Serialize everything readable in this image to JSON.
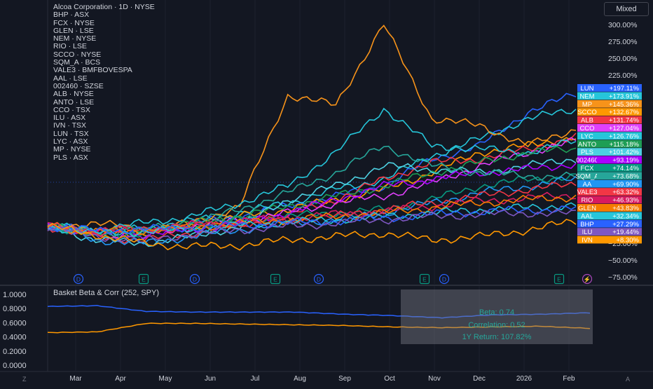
{
  "header": {
    "title": "Alcoa Corporation · 1D · NYSE",
    "mode_button": "Mixed",
    "symbols": [
      "BHP · ASX",
      "FCX · NYSE",
      "GLEN · LSE",
      "NEM · NYSE",
      "RIO · LSE",
      "SCCO · NYSE",
      "SQM_A · BCS",
      "VALE3 · BMFBOVESPA",
      "AAL · LSE",
      "002460 · SZSE",
      "ALB · NYSE",
      "ANTO · LSE",
      "CCO · TSX",
      "ILU · ASX",
      "IVN · TSX",
      "LUN · TSX",
      "LYC · ASX",
      "MP · NYSE",
      "PLS · ASX"
    ]
  },
  "indicator": {
    "title": "Basket Beta & Corr (252, SPY)",
    "beta_text": "Beta: 0.74",
    "corr_text": "Correlation: 0.52",
    "return_text": "1Y Return: 107.82%"
  },
  "footer": {
    "left_btn": "Z",
    "right_btn": "A"
  },
  "chart_data": [
    {
      "type": "line",
      "x": [
        "Mar",
        "Apr",
        "May",
        "Jun",
        "Jul",
        "Aug",
        "Sep",
        "Oct",
        "Nov",
        "Dec",
        "2026",
        "Feb"
      ],
      "ylabel": "",
      "yticks": [
        "300.00%",
        "275.00%",
        "250.00%",
        "225.00%",
        "−25.00%",
        "−50.00%",
        "−75.00%"
      ],
      "ylim": [
        -80,
        305
      ],
      "scale": "percent",
      "event_markers": [
        "D",
        "E",
        "D",
        "E",
        "D",
        "E",
        "D",
        "E",
        "⚡"
      ],
      "series": [
        {
          "name": "LUN",
          "last": "+197.11%",
          "color": "#2962ff",
          "values": [
            0,
            -5,
            -8,
            5,
            15,
            30,
            45,
            60,
            100,
            120,
            170,
            197
          ]
        },
        {
          "name": "NEM",
          "last": "+173.91%",
          "color": "#26c6da",
          "values": [
            0,
            -6,
            -3,
            8,
            20,
            35,
            55,
            70,
            105,
            130,
            160,
            174
          ]
        },
        {
          "name": "MP",
          "last": "+145.36%",
          "color": "#f7931a",
          "values": [
            0,
            5,
            -5,
            5,
            30,
            195,
            180,
            300,
            160,
            150,
            120,
            145
          ]
        },
        {
          "name": "SCCO",
          "last": "+132.67%",
          "color": "#ff9800",
          "values": [
            0,
            -8,
            -10,
            0,
            15,
            25,
            40,
            55,
            80,
            110,
            120,
            133
          ]
        },
        {
          "name": "ALB",
          "last": "+131.74%",
          "color": "#f23645",
          "values": [
            0,
            -15,
            -20,
            -10,
            0,
            15,
            40,
            70,
            95,
            100,
            115,
            132
          ]
        },
        {
          "name": "CCO",
          "last": "+127.04%",
          "color": "#e040fb",
          "values": [
            0,
            -10,
            -12,
            0,
            10,
            20,
            35,
            45,
            65,
            90,
            110,
            127
          ]
        },
        {
          "name": "LYC",
          "last": "+126.76%",
          "color": "#26c6da",
          "values": [
            0,
            -5,
            5,
            15,
            35,
            60,
            110,
            175,
            120,
            115,
            110,
            127
          ]
        },
        {
          "name": "ANTO",
          "last": "+115.18%",
          "color": "#1e9e55",
          "values": [
            0,
            -8,
            -6,
            5,
            15,
            30,
            45,
            60,
            80,
            95,
            110,
            115
          ]
        },
        {
          "name": "PLS",
          "last": "+101.42%",
          "color": "#4dd0e1",
          "values": [
            0,
            -20,
            -25,
            -15,
            0,
            40,
            60,
            90,
            85,
            80,
            90,
            101
          ]
        },
        {
          "name": "002460",
          "last": "+93.19%",
          "color": "#aa00ff",
          "values": [
            0,
            -10,
            -12,
            -5,
            5,
            20,
            40,
            60,
            70,
            80,
            85,
            93
          ]
        },
        {
          "name": "FCX",
          "last": "+74.14%",
          "color": "#089981",
          "values": [
            0,
            -12,
            -10,
            0,
            10,
            15,
            20,
            25,
            40,
            60,
            70,
            74
          ]
        },
        {
          "name": "SQM_A",
          "last": "+73.68%",
          "color": "#26a69a",
          "values": [
            0,
            -10,
            -5,
            5,
            25,
            50,
            80,
            120,
            90,
            80,
            75,
            74
          ]
        },
        {
          "name": "AA",
          "last": "+69.90%",
          "color": "#2196f3",
          "values": [
            0,
            -20,
            -25,
            -15,
            -5,
            5,
            10,
            20,
            35,
            50,
            60,
            70
          ]
        },
        {
          "name": "VALE3",
          "last": "+63.32%",
          "color": "#f23645",
          "values": [
            0,
            -8,
            -5,
            0,
            5,
            10,
            15,
            25,
            35,
            45,
            55,
            63
          ]
        },
        {
          "name": "RIO",
          "last": "+46.93%",
          "color": "#d81b60",
          "values": [
            0,
            -6,
            -4,
            2,
            8,
            12,
            18,
            22,
            30,
            38,
            42,
            47
          ]
        },
        {
          "name": "GLEN",
          "last": "+43.83%",
          "color": "#f57c00",
          "values": [
            0,
            -8,
            -6,
            -2,
            5,
            10,
            15,
            20,
            28,
            35,
            40,
            44
          ]
        },
        {
          "name": "AAL",
          "last": "+32.34%",
          "color": "#26c6da",
          "values": [
            0,
            -10,
            -8,
            -4,
            2,
            6,
            10,
            15,
            20,
            25,
            28,
            32
          ]
        },
        {
          "name": "BHP",
          "last": "+27.29%",
          "color": "#2962ff",
          "values": [
            0,
            -6,
            -4,
            -2,
            2,
            5,
            8,
            12,
            18,
            22,
            24,
            27
          ]
        },
        {
          "name": "ILU",
          "last": "+19.44%",
          "color": "#7e57c2",
          "values": [
            0,
            -15,
            -20,
            -12,
            -5,
            0,
            5,
            10,
            15,
            18,
            20,
            19
          ]
        },
        {
          "name": "IVN",
          "last": "+8.30%",
          "color": "#ff9800",
          "values": [
            0,
            -12,
            -25,
            -30,
            -28,
            -20,
            -15,
            -10,
            -20,
            -15,
            -5,
            8
          ]
        }
      ]
    },
    {
      "type": "line",
      "x": [
        "Mar",
        "Apr",
        "May",
        "Jun",
        "Jul",
        "Aug",
        "Sep",
        "Oct",
        "Nov",
        "Dec",
        "2026",
        "Feb"
      ],
      "yticks": [
        "1.0000",
        "0.8000",
        "0.6000",
        "0.4000",
        "0.2000",
        "0.0000"
      ],
      "ylim": [
        0,
        1.0
      ],
      "series": [
        {
          "name": "Beta",
          "color": "#2962ff",
          "values": [
            0.83,
            0.84,
            0.76,
            0.75,
            0.75,
            0.75,
            0.72,
            0.7,
            0.67,
            0.71,
            0.72,
            0.74
          ]
        },
        {
          "name": "Correlation",
          "color": "#ff9800",
          "values": [
            0.46,
            0.47,
            0.59,
            0.59,
            0.58,
            0.57,
            0.56,
            0.54,
            0.53,
            0.54,
            0.55,
            0.52
          ]
        }
      ]
    }
  ]
}
